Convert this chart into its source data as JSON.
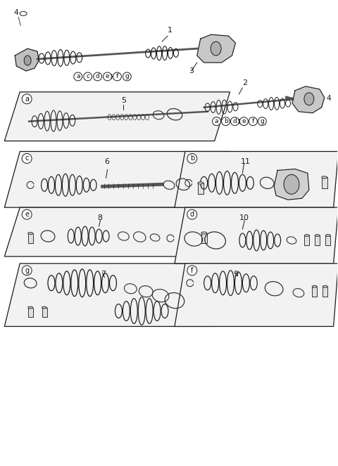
{
  "bg_color": "#ffffff",
  "line_color": "#1a1a1a",
  "label_color": "#111111",
  "panel_edge_color": "#555555",
  "fig_width": 4.8,
  "fig_height": 6.63,
  "dpi": 100,
  "panel_labels": [
    "a",
    "b",
    "c",
    "d",
    "e",
    "f",
    "g"
  ],
  "part_numbers": {
    "a": "5",
    "b": "11",
    "c": "6",
    "d": "10",
    "e": "8",
    "f": "9",
    "g": "7"
  },
  "top_labels_left": [
    "a",
    "c",
    "d",
    "e",
    "f",
    "g"
  ],
  "top_labels_right": [
    "a",
    "b",
    "d",
    "e",
    "f",
    "g"
  ],
  "assembly_labels": [
    "1",
    "2",
    "3",
    "4"
  ]
}
